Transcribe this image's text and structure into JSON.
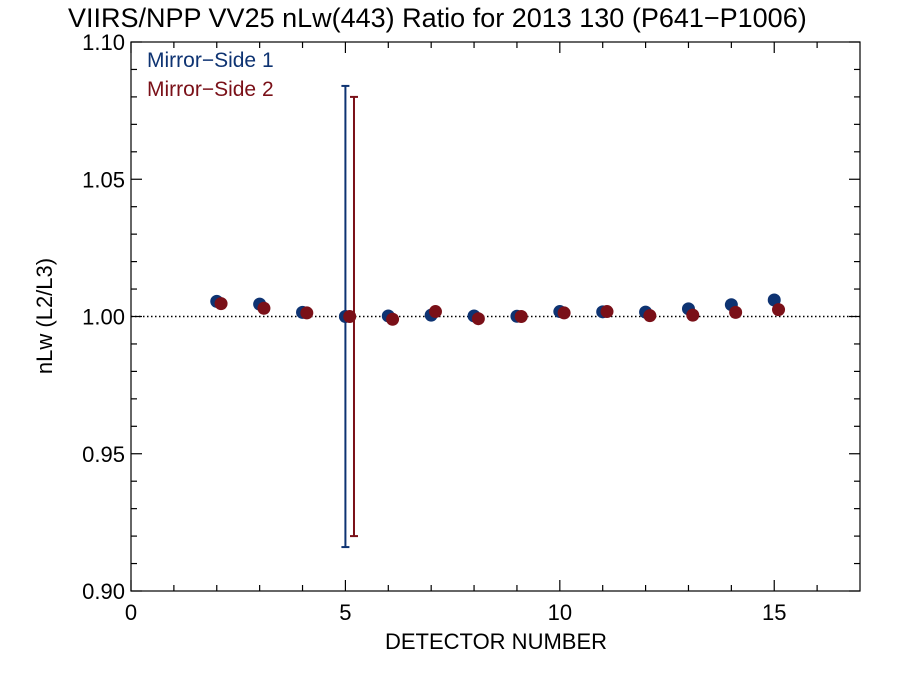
{
  "chart_data": {
    "type": "scatter",
    "title": "VIIRS/NPP VV25 nLw(443) Ratio for 2013 130 (P641−P1006)",
    "xlabel": "DETECTOR NUMBER",
    "ylabel": "nLw (L2/L3)",
    "xlim": [
      0,
      17
    ],
    "ylim": [
      0.9,
      1.1
    ],
    "x_ticks": [
      0,
      5,
      10,
      15
    ],
    "x_tick_labels": [
      "0",
      "5",
      "10",
      "15"
    ],
    "y_ticks": [
      0.9,
      0.95,
      1.0,
      1.05,
      1.1
    ],
    "y_tick_labels": [
      "0.90",
      "0.95",
      "1.00",
      "1.05",
      "1.10"
    ],
    "reference_line": 1.0,
    "grid": false,
    "legend_position": "top-left",
    "series": [
      {
        "name": "Mirror−Side 1",
        "color": "#0e3372",
        "x": [
          2,
          3,
          4,
          5,
          6,
          7,
          8,
          9,
          10,
          11,
          12,
          13,
          14,
          15
        ],
        "y": [
          1.0055,
          1.0045,
          1.0015,
          1.0,
          1.0002,
          1.0005,
          1.0002,
          1.0001,
          1.0018,
          1.0017,
          1.0016,
          1.0028,
          1.0043,
          1.006
        ],
        "error_bars": [
          {
            "x": 5,
            "low": 0.916,
            "high": 1.084
          }
        ]
      },
      {
        "name": "Mirror−Side 2",
        "color": "#7a1018",
        "x": [
          2.1,
          3.1,
          4.1,
          5.1,
          6.1,
          7.1,
          8.1,
          9.1,
          10.1,
          11.1,
          12.1,
          13.1,
          14.1,
          15.1
        ],
        "y": [
          1.0047,
          1.003,
          1.0013,
          1.0,
          0.999,
          1.0018,
          0.9992,
          1.0,
          1.0013,
          1.0018,
          1.0003,
          1.0005,
          1.0015,
          1.0025
        ],
        "error_bars": [
          {
            "x": 5.2,
            "low": 0.92,
            "high": 1.08
          }
        ]
      }
    ]
  }
}
